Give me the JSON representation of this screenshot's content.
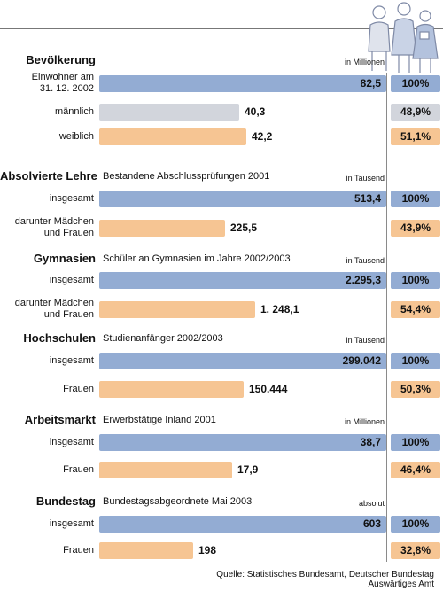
{
  "chart_data": {
    "type": "bar",
    "source": "Quelle: Statistisches Bundesamt, Deutscher Bundestag\nAuswärtiges Amt",
    "sections": [
      {
        "title": "Bevölkerung",
        "subtitle": "",
        "unit": "in Millionen",
        "rows": [
          {
            "label": "Einwohner am\n31. 12. 2002",
            "value": 82.5,
            "value_text": "82,5",
            "percent": "100%",
            "color": "blue"
          },
          {
            "label": "männlich",
            "value": 40.3,
            "value_text": "40,3",
            "percent": "48,9%",
            "color": "grey"
          },
          {
            "label": "weiblich",
            "value": 42.2,
            "value_text": "42,2",
            "percent": "51,1%",
            "color": "orange"
          }
        ]
      },
      {
        "title": "Absolvierte Lehre",
        "subtitle": "Bestandene Abschlussprüfungen 2001",
        "unit": "in Tausend",
        "rows": [
          {
            "label": "insgesamt",
            "value": 513.4,
            "value_text": "513,4",
            "percent": "100%",
            "color": "blue"
          },
          {
            "label": "darunter Mädchen\nund Frauen",
            "value": 225.5,
            "value_text": "225,5",
            "percent": "43,9%",
            "color": "orange"
          }
        ]
      },
      {
        "title": "Gymnasien",
        "subtitle": "Schüler an Gymnasien im Jahre 2002/2003",
        "unit": "in Tausend",
        "rows": [
          {
            "label": "insgesamt",
            "value": 2295.3,
            "value_text": "2.295,3",
            "percent": "100%",
            "color": "blue"
          },
          {
            "label": "darunter Mädchen\nund Frauen",
            "value": 1248.1,
            "value_text": "1. 248,1",
            "percent": "54,4%",
            "color": "orange"
          }
        ]
      },
      {
        "title": "Hochschulen",
        "subtitle": "Studienanfänger 2002/2003",
        "unit": "in Tausend",
        "rows": [
          {
            "label": "insgesamt",
            "value": 299042,
            "value_text": "299.042",
            "percent": "100%",
            "color": "blue"
          },
          {
            "label": "Frauen",
            "value": 150444,
            "value_text": "150.444",
            "percent": "50,3%",
            "color": "orange"
          }
        ]
      },
      {
        "title": "Arbeitsmarkt",
        "subtitle": "Erwerbstätige Inland 2001",
        "unit": "in Millionen",
        "rows": [
          {
            "label": "insgesamt",
            "value": 38.7,
            "value_text": "38,7",
            "percent": "100%",
            "color": "blue"
          },
          {
            "label": "Frauen",
            "value": 17.9,
            "value_text": "17,9",
            "percent": "46,4%",
            "color": "orange"
          }
        ]
      },
      {
        "title": "Bundestag",
        "subtitle": "Bundestagsabgeordnete Mai 2003",
        "unit": "absolut",
        "rows": [
          {
            "label": "insgesamt",
            "value": 603,
            "value_text": "603",
            "percent": "100%",
            "color": "blue"
          },
          {
            "label": "Frauen",
            "value": 198,
            "value_text": "198",
            "percent": "32,8%",
            "color": "orange"
          }
        ]
      }
    ],
    "colors": {
      "blue": "#93acd3",
      "grey": "#d2d5dc",
      "orange": "#f6c593"
    }
  }
}
